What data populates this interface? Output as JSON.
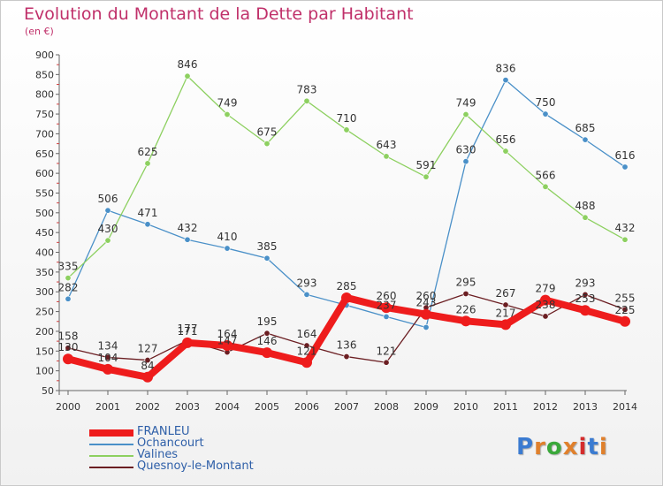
{
  "title": "Evolution du Montant de la Dette par Habitant",
  "unit": "(en €)",
  "logo": {
    "letters": [
      "P",
      "r",
      "o",
      "x",
      "i",
      "t",
      "i"
    ],
    "colors": [
      "#3b7bd1",
      "#e0802c",
      "#3aa83a",
      "#e0802c",
      "#d42c2c",
      "#3b7bd1",
      "#e0802c"
    ]
  },
  "chart_data": {
    "type": "line",
    "x": [
      "2000",
      "2001",
      "2002",
      "2003",
      "2004",
      "2005",
      "2006",
      "2007",
      "2008",
      "2009",
      "2010",
      "2011",
      "2012",
      "2013",
      "2014"
    ],
    "ylim": [
      50,
      900
    ],
    "yticks": [
      50,
      100,
      150,
      200,
      250,
      300,
      350,
      400,
      450,
      500,
      550,
      600,
      650,
      700,
      750,
      800,
      850,
      900
    ],
    "grid": false,
    "legend_position": "bottom-left",
    "series": [
      {
        "name": "Ochancourt",
        "color": "#4a90c8",
        "width": 1.3,
        "values": [
          282,
          506,
          471,
          432,
          410,
          385,
          293,
          266,
          237,
          210,
          630,
          836,
          750,
          685,
          616
        ],
        "labels": [
          "282",
          "506",
          "471",
          "432",
          "410",
          "385",
          "293",
          "",
          "237",
          "",
          "630",
          "836",
          "750",
          "685",
          "616"
        ]
      },
      {
        "name": "Valines",
        "color": "#8dd060",
        "width": 1.3,
        "values": [
          335,
          430,
          625,
          846,
          749,
          675,
          783,
          710,
          643,
          591,
          749,
          656,
          566,
          488,
          432
        ],
        "labels": [
          "335",
          "430",
          "625",
          "846",
          "749",
          "675",
          "783",
          "710",
          "643",
          "591",
          "749",
          "656",
          "566",
          "488",
          "432"
        ]
      },
      {
        "name": "Quesnoy-le-Montant",
        "color": "#6b1e22",
        "width": 1.3,
        "values": [
          158,
          134,
          127,
          177,
          147,
          195,
          164,
          136,
          121,
          260,
          295,
          267,
          238,
          293,
          255
        ],
        "labels": [
          "158",
          "134",
          "127",
          "177",
          "147",
          "195",
          "164",
          "136",
          "121",
          "260",
          "295",
          "267",
          "238",
          "293",
          "255"
        ]
      },
      {
        "name": "FRANLEU",
        "color": "#ee1c1c",
        "width": 8,
        "values": [
          130,
          104,
          84,
          171,
          164,
          146,
          121,
          285,
          260,
          243,
          226,
          217,
          279,
          253,
          225
        ],
        "labels": [
          "130",
          "104",
          "84",
          "171",
          "164",
          "146",
          "121",
          "285",
          "260",
          "243",
          "226",
          "217",
          "279",
          "253",
          "225"
        ]
      }
    ],
    "legend_order": [
      "FRANLEU",
      "Ochancourt",
      "Valines",
      "Quesnoy-le-Montant"
    ]
  }
}
